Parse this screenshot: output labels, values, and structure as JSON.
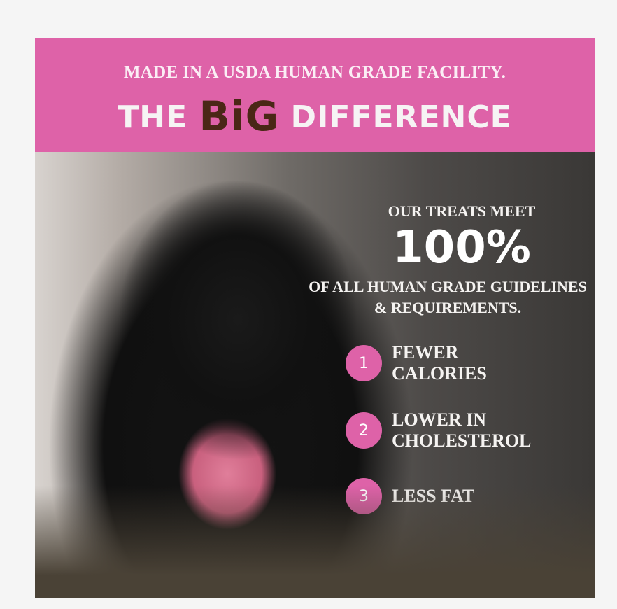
{
  "banner": {
    "subtitle": "MADE IN A USDA HUMAN GRADE FACILITY.",
    "headline_pre": "THE",
    "headline_big": "BiG",
    "headline_post": "DIFFERENCE",
    "color": "#de62a8"
  },
  "claim": {
    "line1": "OUR TREATS MEET",
    "percent": "100%",
    "line2": "OF ALL HUMAN GRADE GUIDELINES & REQUIREMENTS."
  },
  "benefits": [
    {
      "number": "1",
      "label": "FEWER CALORIES"
    },
    {
      "number": "2",
      "label": "LOWER IN CHOLESTEROL"
    },
    {
      "number": "3",
      "label": "LESS FAT"
    }
  ]
}
